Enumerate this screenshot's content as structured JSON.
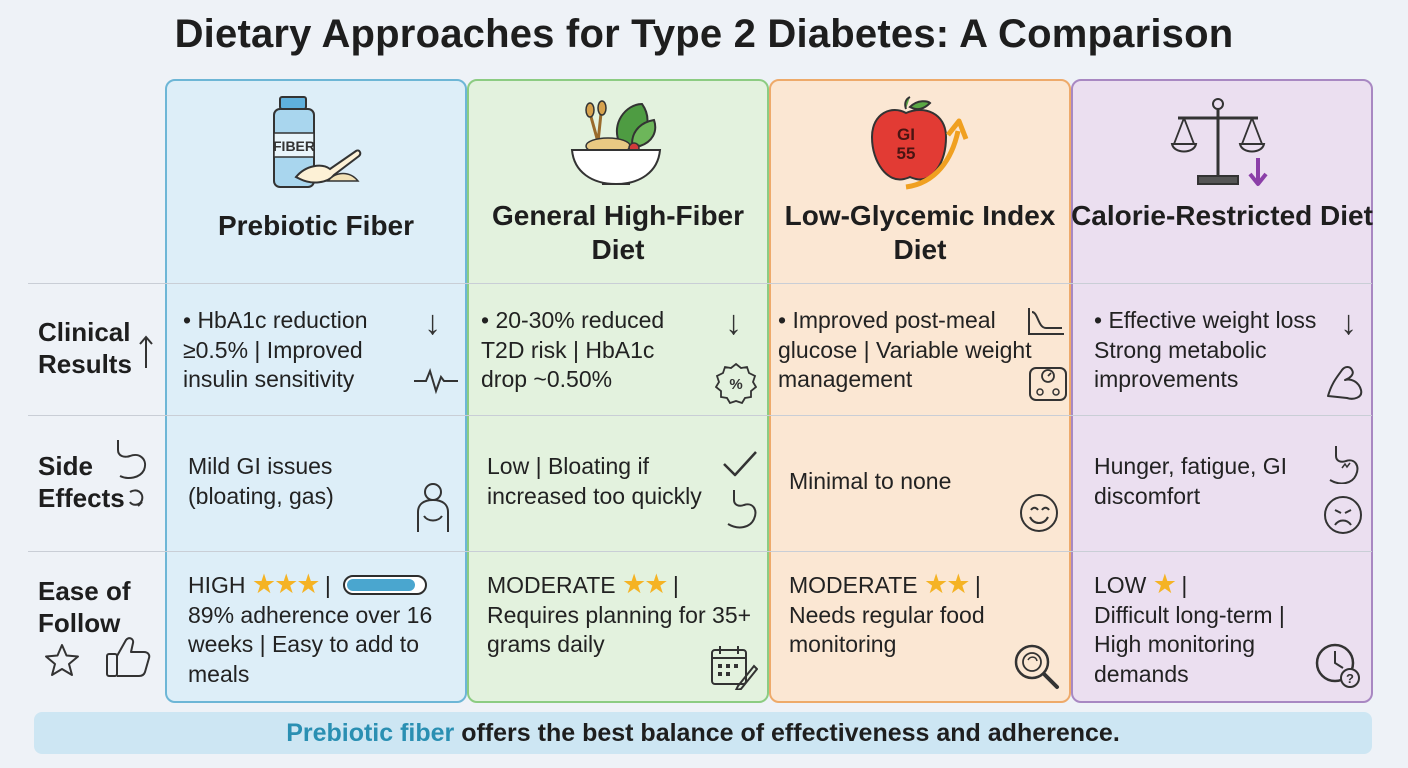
{
  "title": "Dietary Approaches for Type 2 Diabetes: A Comparison",
  "rows": {
    "clinical": "Clinical Results",
    "side": "Side Effects",
    "ease": "Ease of Follow"
  },
  "columns": [
    {
      "title": "Prebiotic Fiber",
      "jar_label": "FIBER",
      "clinical": "• HbA1c reduction ≥0.5% | Improved insulin sensitivity",
      "side": "Mild GI issues (bloating, gas)",
      "ease_level": "HIGH",
      "ease_stars": 3,
      "ease_bar_fraction": 0.9,
      "ease_text": "89% adherence over 16 weeks | Easy to add to meals"
    },
    {
      "title": "General High-Fiber Diet",
      "clinical": "• 20-30% reduced T2D risk | HbA1c drop ~0.50%",
      "side": "Low | Bloating if increased too quickly",
      "ease_level": "MODERATE",
      "ease_stars": 2,
      "ease_text": "Requires planning for 35+ grams daily"
    },
    {
      "title": "Low-Glycemic Index Diet",
      "apple_label": "GI 55",
      "clinical": "• Improved post-meal glucose | Variable weight management",
      "side": "Minimal to none",
      "ease_level": "MODERATE",
      "ease_stars": 2,
      "ease_text": "Needs regular food monitoring"
    },
    {
      "title": "Calorie-Restricted Diet",
      "clinical": "• Effective weight loss Strong metabolic improvements",
      "side": "Hunger, fatigue, GI discomfort",
      "ease_level": "LOW",
      "ease_stars": 1,
      "ease_text": "Difficult long-term | High monitoring demands"
    }
  ],
  "footer": {
    "highlight": "Prebiotic fiber",
    "rest": " offers the best balance of effectiveness and adherence."
  }
}
